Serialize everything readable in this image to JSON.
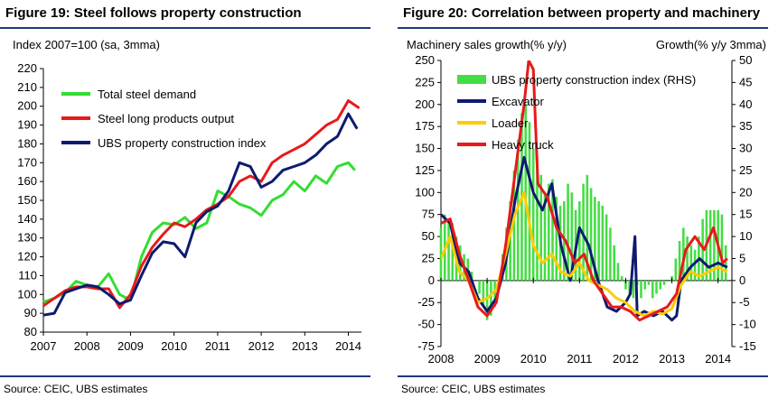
{
  "figures": [
    {
      "title": "Figure 19: Steel follows property construction",
      "source": "Source: CEIC, UBS estimates"
    },
    {
      "title": "Figure 20: Correlation between property and machinery",
      "source": "Source: CEIC, UBS estimates"
    }
  ],
  "colors": {
    "green": "#33dd33",
    "red": "#e8191b",
    "navy": "#0d1b6e",
    "yellow": "#ffcc00",
    "bar_green": "#44dd44",
    "rule": "#1f3a7a"
  },
  "chart_data": [
    {
      "type": "line",
      "title": "Figure 19: Steel follows property construction",
      "ylabel": "Index 2007=100 (sa, 3mma)",
      "xlim": [
        2007.0,
        2014.3
      ],
      "ylim": [
        80,
        220
      ],
      "yticks": [
        80,
        90,
        100,
        110,
        120,
        130,
        140,
        150,
        160,
        170,
        180,
        190,
        200,
        210,
        220
      ],
      "xticks": [
        "2007",
        "2008",
        "2009",
        "2010",
        "2011",
        "2012",
        "2013",
        "2014"
      ],
      "legend_position": "top-left",
      "series": [
        {
          "name": "Total steel demand",
          "color": "#33dd33",
          "points": [
            [
              2007.0,
              96
            ],
            [
              2007.25,
              98
            ],
            [
              2007.5,
              101
            ],
            [
              2007.75,
              107
            ],
            [
              2008.0,
              105
            ],
            [
              2008.25,
              104
            ],
            [
              2008.5,
              111
            ],
            [
              2008.75,
              100
            ],
            [
              2009.0,
              97
            ],
            [
              2009.25,
              120
            ],
            [
              2009.5,
              133
            ],
            [
              2009.75,
              138
            ],
            [
              2010.0,
              137
            ],
            [
              2010.25,
              141
            ],
            [
              2010.5,
              135
            ],
            [
              2010.75,
              138
            ],
            [
              2011.0,
              155
            ],
            [
              2011.25,
              152
            ],
            [
              2011.5,
              148
            ],
            [
              2011.75,
              146
            ],
            [
              2012.0,
              142
            ],
            [
              2012.25,
              150
            ],
            [
              2012.5,
              153
            ],
            [
              2012.75,
              160
            ],
            [
              2013.0,
              155
            ],
            [
              2013.25,
              163
            ],
            [
              2013.5,
              159
            ],
            [
              2013.75,
              168
            ],
            [
              2014.0,
              170
            ],
            [
              2014.15,
              166
            ]
          ]
        },
        {
          "name": "Steel long products output",
          "color": "#e8191b",
          "points": [
            [
              2007.0,
              94
            ],
            [
              2007.25,
              98
            ],
            [
              2007.5,
              102
            ],
            [
              2007.75,
              104
            ],
            [
              2008.0,
              104
            ],
            [
              2008.25,
              103
            ],
            [
              2008.5,
              103
            ],
            [
              2008.75,
              93
            ],
            [
              2009.0,
              100
            ],
            [
              2009.25,
              115
            ],
            [
              2009.5,
              125
            ],
            [
              2009.75,
              132
            ],
            [
              2010.0,
              138
            ],
            [
              2010.25,
              136
            ],
            [
              2010.5,
              140
            ],
            [
              2010.75,
              145
            ],
            [
              2011.0,
              148
            ],
            [
              2011.25,
              152
            ],
            [
              2011.5,
              160
            ],
            [
              2011.75,
              163
            ],
            [
              2012.0,
              160
            ],
            [
              2012.25,
              170
            ],
            [
              2012.5,
              174
            ],
            [
              2012.75,
              177
            ],
            [
              2013.0,
              180
            ],
            [
              2013.25,
              185
            ],
            [
              2013.5,
              190
            ],
            [
              2013.75,
              193
            ],
            [
              2014.0,
              203
            ],
            [
              2014.25,
              199
            ]
          ]
        },
        {
          "name": "UBS property construction index",
          "color": "#0d1b6e",
          "points": [
            [
              2007.0,
              89
            ],
            [
              2007.25,
              90
            ],
            [
              2007.5,
              101
            ],
            [
              2007.75,
              103
            ],
            [
              2008.0,
              105
            ],
            [
              2008.25,
              104
            ],
            [
              2008.5,
              100
            ],
            [
              2008.75,
              95
            ],
            [
              2009.0,
              97
            ],
            [
              2009.25,
              110
            ],
            [
              2009.5,
              122
            ],
            [
              2009.75,
              128
            ],
            [
              2010.0,
              127
            ],
            [
              2010.25,
              120
            ],
            [
              2010.5,
              138
            ],
            [
              2010.75,
              144
            ],
            [
              2011.0,
              147
            ],
            [
              2011.25,
              155
            ],
            [
              2011.5,
              170
            ],
            [
              2011.75,
              168
            ],
            [
              2012.0,
              157
            ],
            [
              2012.25,
              160
            ],
            [
              2012.5,
              166
            ],
            [
              2012.75,
              168
            ],
            [
              2013.0,
              170
            ],
            [
              2013.25,
              174
            ],
            [
              2013.5,
              180
            ],
            [
              2013.75,
              184
            ],
            [
              2014.0,
              196
            ],
            [
              2014.2,
              188
            ]
          ]
        }
      ]
    },
    {
      "type": "line",
      "title": "Figure 20: Correlation between property and machinery",
      "ylabel": "Machinery sales growth(% y/y)",
      "ylabel_right": "Growth(% y/y 3mma)",
      "xlim": [
        2008.0,
        2014.3
      ],
      "ylim": [
        -75,
        250
      ],
      "ylim_right": [
        -15,
        50
      ],
      "yticks": [
        -75,
        -50,
        -25,
        0,
        25,
        50,
        75,
        100,
        125,
        150,
        175,
        200,
        225,
        250
      ],
      "yticks_right": [
        -15,
        -10,
        -5,
        0,
        5,
        10,
        15,
        20,
        25,
        30,
        35,
        40,
        45,
        50
      ],
      "xticks": [
        "2008",
        "2009",
        "2010",
        "2011",
        "2012",
        "2013",
        "2014"
      ],
      "legend_position": "top-left",
      "bars": {
        "name": "UBS property construction index (RHS)",
        "color": "#44dd44",
        "x": [
          2008.0,
          2008.0833,
          2008.1667,
          2008.25,
          2008.3333,
          2008.4167,
          2008.5,
          2008.5833,
          2008.6667,
          2008.75,
          2008.8333,
          2008.9167,
          2009.0,
          2009.0833,
          2009.1667,
          2009.25,
          2009.3333,
          2009.4167,
          2009.5,
          2009.5833,
          2009.6667,
          2009.75,
          2009.8333,
          2009.9167,
          2010.0,
          2010.0833,
          2010.1667,
          2010.25,
          2010.3333,
          2010.4167,
          2010.5,
          2010.5833,
          2010.6667,
          2010.75,
          2010.8333,
          2010.9167,
          2011.0,
          2011.0833,
          2011.1667,
          2011.25,
          2011.3333,
          2011.4167,
          2011.5,
          2011.5833,
          2011.6667,
          2011.75,
          2011.8333,
          2011.9167,
          2012.0,
          2012.0833,
          2012.1667,
          2012.25,
          2012.3333,
          2012.4167,
          2012.5,
          2012.5833,
          2012.6667,
          2012.75,
          2012.8333,
          2012.9167,
          2013.0,
          2013.0833,
          2013.1667,
          2013.25,
          2013.3333,
          2013.4167,
          2013.5,
          2013.5833,
          2013.6667,
          2013.75,
          2013.8333,
          2013.9167,
          2014.0,
          2014.0833,
          2014.1667
        ],
        "values": [
          12,
          15,
          14,
          13,
          10,
          8,
          6,
          5,
          2,
          0,
          -3,
          -6,
          -9,
          -8,
          -6,
          -2,
          6,
          12,
          18,
          25,
          32,
          38,
          40,
          36,
          30,
          28,
          24,
          20,
          22,
          23,
          19,
          17,
          18,
          22,
          20,
          16,
          18,
          22,
          24,
          21,
          19,
          18,
          17,
          15,
          12,
          8,
          4,
          1,
          -2,
          -3,
          -4,
          -1,
          -4,
          -2,
          -1,
          -4,
          -3,
          -2,
          -1,
          0,
          1,
          5,
          9,
          12,
          10,
          8,
          7,
          10,
          14,
          16,
          16,
          16,
          16,
          15,
          8
        ]
      },
      "series": [
        {
          "name": "Excavator",
          "color": "#0d1b6e",
          "points": [
            [
              2008.0,
              75
            ],
            [
              2008.2,
              65
            ],
            [
              2008.4,
              20
            ],
            [
              2008.6,
              10
            ],
            [
              2008.8,
              -20
            ],
            [
              2009.0,
              -35
            ],
            [
              2009.2,
              -20
            ],
            [
              2009.4,
              20
            ],
            [
              2009.6,
              90
            ],
            [
              2009.8,
              140
            ],
            [
              2009.9,
              120
            ],
            [
              2010.0,
              100
            ],
            [
              2010.2,
              80
            ],
            [
              2010.4,
              110
            ],
            [
              2010.6,
              40
            ],
            [
              2010.8,
              0
            ],
            [
              2011.0,
              60
            ],
            [
              2011.2,
              40
            ],
            [
              2011.4,
              0
            ],
            [
              2011.6,
              -30
            ],
            [
              2011.8,
              -35
            ],
            [
              2012.0,
              -25
            ],
            [
              2012.1,
              -15
            ],
            [
              2012.2,
              50
            ],
            [
              2012.25,
              -40
            ],
            [
              2012.4,
              -35
            ],
            [
              2012.6,
              -40
            ],
            [
              2012.8,
              -35
            ],
            [
              2013.0,
              -45
            ],
            [
              2013.1,
              -40
            ],
            [
              2013.2,
              0
            ],
            [
              2013.4,
              15
            ],
            [
              2013.6,
              25
            ],
            [
              2013.8,
              15
            ],
            [
              2014.0,
              20
            ],
            [
              2014.2,
              15
            ]
          ]
        },
        {
          "name": "Loader",
          "color": "#ffcc00",
          "points": [
            [
              2008.0,
              25
            ],
            [
              2008.2,
              50
            ],
            [
              2008.4,
              10
            ],
            [
              2008.6,
              0
            ],
            [
              2008.8,
              -25
            ],
            [
              2009.0,
              -20
            ],
            [
              2009.2,
              -10
            ],
            [
              2009.4,
              30
            ],
            [
              2009.6,
              75
            ],
            [
              2009.8,
              100
            ],
            [
              2010.0,
              40
            ],
            [
              2010.2,
              20
            ],
            [
              2010.4,
              30
            ],
            [
              2010.6,
              10
            ],
            [
              2010.8,
              5
            ],
            [
              2011.0,
              20
            ],
            [
              2011.2,
              0
            ],
            [
              2011.4,
              -5
            ],
            [
              2011.6,
              -10
            ],
            [
              2011.8,
              -20
            ],
            [
              2012.0,
              -25
            ],
            [
              2012.2,
              -35
            ],
            [
              2012.4,
              -40
            ],
            [
              2012.6,
              -35
            ],
            [
              2012.8,
              -38
            ],
            [
              2013.0,
              -32
            ],
            [
              2013.2,
              -5
            ],
            [
              2013.4,
              10
            ],
            [
              2013.6,
              5
            ],
            [
              2013.8,
              10
            ],
            [
              2014.0,
              15
            ],
            [
              2014.2,
              10
            ]
          ]
        },
        {
          "name": "Heavy truck",
          "color": "#e8191b",
          "points": [
            [
              2008.0,
              65
            ],
            [
              2008.2,
              70
            ],
            [
              2008.4,
              30
            ],
            [
              2008.6,
              0
            ],
            [
              2008.8,
              -30
            ],
            [
              2009.0,
              -40
            ],
            [
              2009.2,
              -25
            ],
            [
              2009.4,
              40
            ],
            [
              2009.6,
              120
            ],
            [
              2009.8,
              200
            ],
            [
              2009.9,
              250
            ],
            [
              2010.0,
              240
            ],
            [
              2010.1,
              110
            ],
            [
              2010.3,
              95
            ],
            [
              2010.5,
              60
            ],
            [
              2010.7,
              45
            ],
            [
              2010.9,
              20
            ],
            [
              2011.1,
              30
            ],
            [
              2011.3,
              0
            ],
            [
              2011.5,
              -15
            ],
            [
              2011.7,
              -30
            ],
            [
              2011.9,
              -30
            ],
            [
              2012.1,
              -35
            ],
            [
              2012.3,
              -45
            ],
            [
              2012.5,
              -40
            ],
            [
              2012.7,
              -35
            ],
            [
              2012.9,
              -30
            ],
            [
              2013.1,
              -15
            ],
            [
              2013.3,
              35
            ],
            [
              2013.5,
              50
            ],
            [
              2013.7,
              35
            ],
            [
              2013.9,
              60
            ],
            [
              2014.1,
              20
            ],
            [
              2014.2,
              25
            ]
          ]
        }
      ]
    }
  ]
}
